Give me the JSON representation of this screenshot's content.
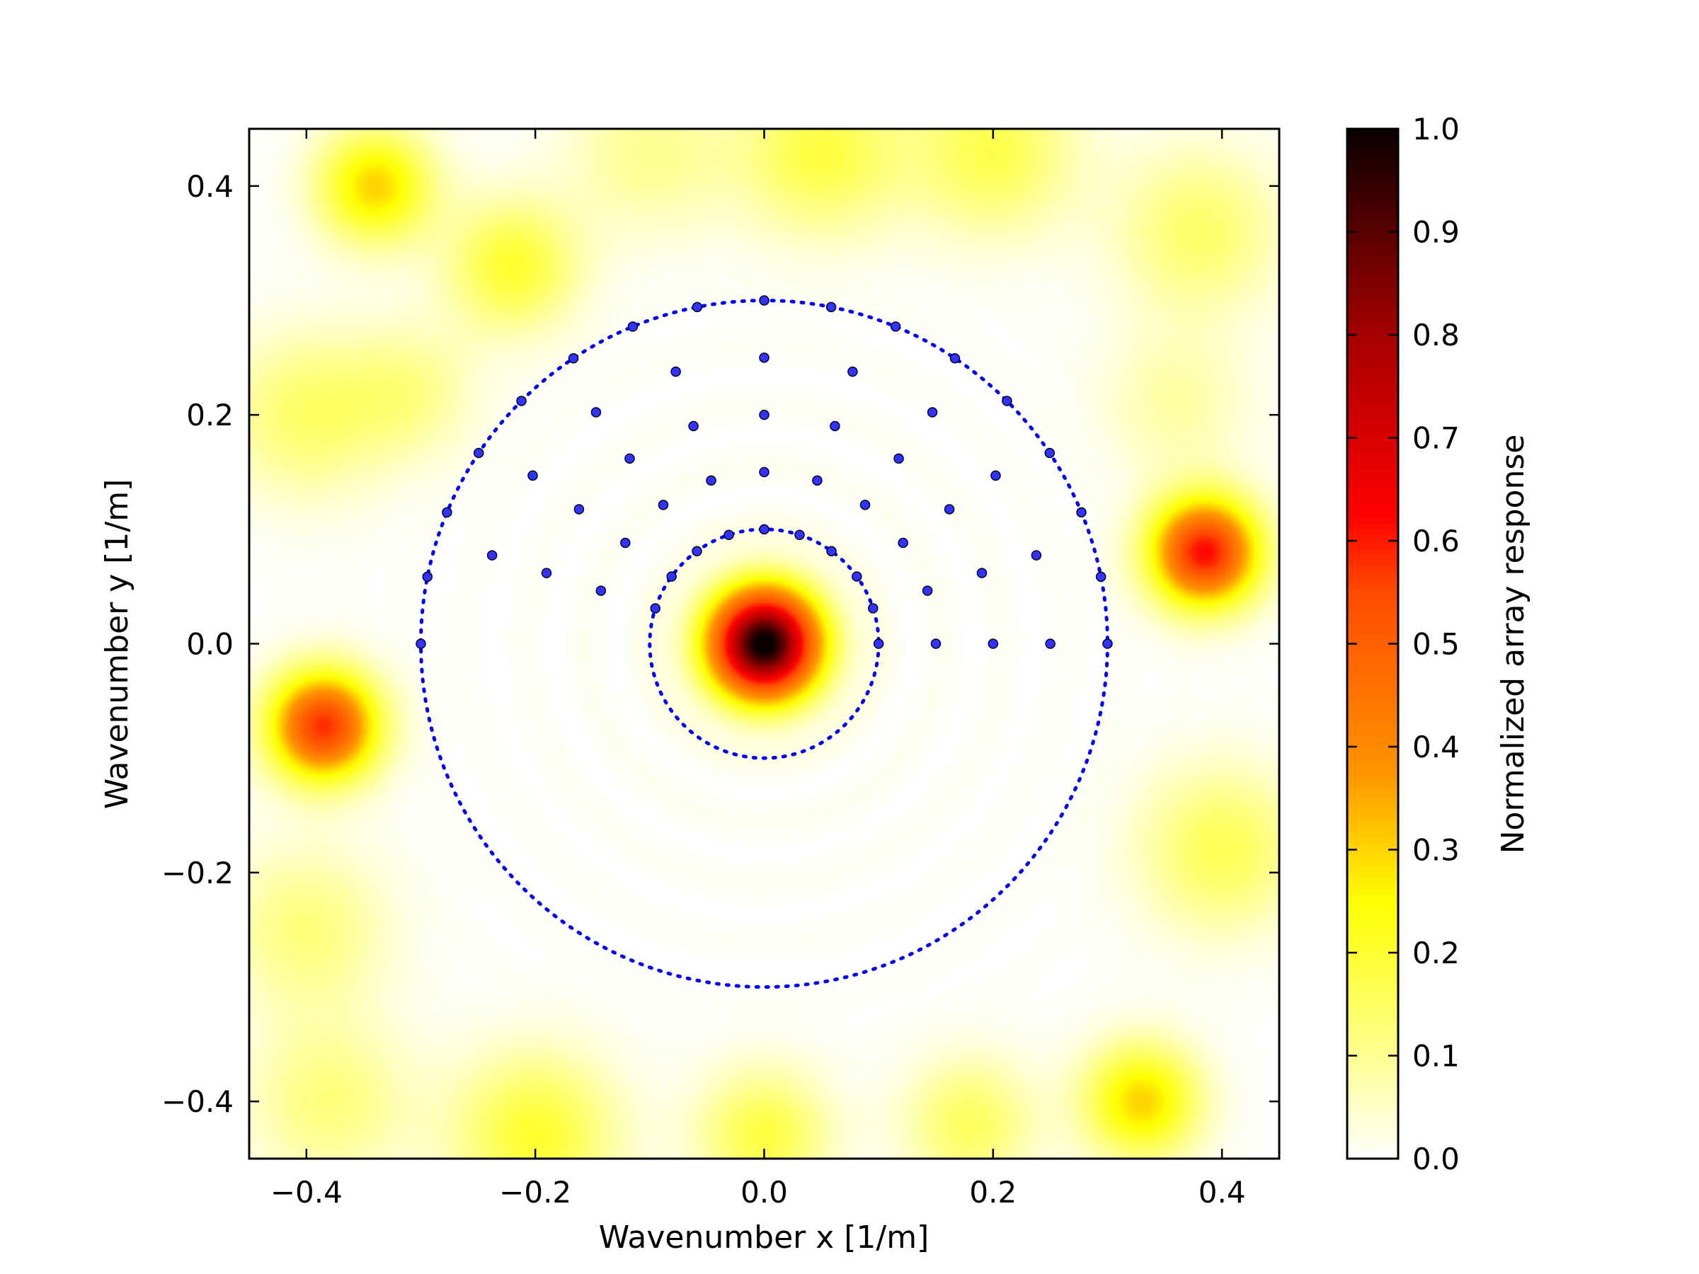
{
  "chart_data": {
    "type": "heatmap",
    "xlabel": "Wavenumber x [1/m]",
    "ylabel": "Wavenumber y [1/m]",
    "xlim": [
      -0.45,
      0.45
    ],
    "ylim": [
      -0.45,
      0.45
    ],
    "x_ticks": [
      -0.4,
      -0.2,
      0.0,
      0.2,
      0.4
    ],
    "y_ticks": [
      -0.4,
      -0.2,
      0.0,
      0.2,
      0.4
    ],
    "x_tick_labels": [
      "−0.4",
      "−0.2",
      "0.0",
      "0.2",
      "0.4"
    ],
    "y_tick_labels": [
      "−0.4",
      "−0.2",
      "0.0",
      "0.2",
      "0.4"
    ],
    "colormap": "hot_r",
    "colorbar": {
      "label": "Normalized array response",
      "range": [
        0.0,
        1.0
      ],
      "ticks": [
        "0.0",
        "0.1",
        "0.2",
        "0.3",
        "0.4",
        "0.5",
        "0.6",
        "0.7",
        "0.8",
        "0.9",
        "1.0"
      ]
    },
    "grid": false,
    "main_peak": {
      "x": 0.0,
      "y": 0.0,
      "value": 1.0
    },
    "side_lobes": [
      {
        "x": 0.38,
        "y": 0.08,
        "value": 0.62
      },
      {
        "x": -0.38,
        "y": -0.07,
        "value": 0.58
      },
      {
        "x": -0.33,
        "y": 0.39,
        "value": 0.32
      },
      {
        "x": 0.32,
        "y": -0.39,
        "value": 0.32
      }
    ],
    "circles": [
      {
        "center": [
          0.0,
          0.0
        ],
        "radius": 0.1,
        "style": "dotted",
        "color": "#0000ff"
      },
      {
        "center": [
          0.0,
          0.0
        ],
        "radius": 0.3,
        "style": "dotted",
        "color": "#0000ff"
      }
    ],
    "scatter_points": {
      "color": "#3333ff",
      "description_rings": [
        {
          "radius": 0.1,
          "count": 10
        },
        {
          "radius": 0.15,
          "count": 10
        },
        {
          "radius": 0.2,
          "count": 10
        },
        {
          "radius": 0.25,
          "count": 10
        },
        {
          "radius": 0.3,
          "count": 17
        }
      ]
    }
  }
}
